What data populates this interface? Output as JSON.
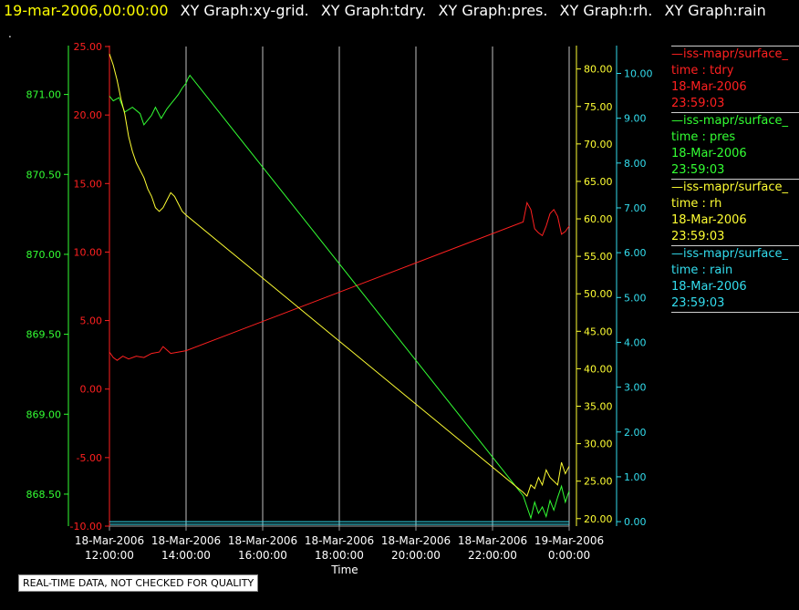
{
  "header": {
    "timestamp": "19-mar-2006,00:00:00",
    "graphs": [
      "XY Graph:xy-grid.",
      "XY Graph:tdry.",
      "XY Graph:pres.",
      "XY Graph:rh.",
      "XY Graph:rain"
    ],
    "dot": "."
  },
  "notice": "REAL-TIME DATA, NOT CHECKED FOR QUALITY",
  "legend": [
    {
      "source": "iss-mapr/surface_",
      "field": "time : tdry",
      "date": "18-Mar-2006",
      "time": "23:59:03",
      "color": "#ff2020"
    },
    {
      "source": "iss-mapr/surface_",
      "field": "time : pres",
      "date": "18-Mar-2006",
      "time": "23:59:03",
      "color": "#33ff33"
    },
    {
      "source": "iss-mapr/surface_",
      "field": "time : rh",
      "date": "18-Mar-2006",
      "time": "23:59:03",
      "color": "#ffff33"
    },
    {
      "source": "iss-mapr/surface_",
      "field": "time : rain",
      "date": "18-Mar-2006",
      "time": "23:59:03",
      "color": "#33ddee"
    }
  ],
  "chart_data": {
    "type": "line",
    "xlabel": "Time",
    "x_ticks": [
      {
        "hour": 12,
        "date": "18-Mar-2006",
        "time": "12:00:00"
      },
      {
        "hour": 14,
        "date": "18-Mar-2006",
        "time": "14:00:00"
      },
      {
        "hour": 16,
        "date": "18-Mar-2006",
        "time": "16:00:00"
      },
      {
        "hour": 18,
        "date": "18-Mar-2006",
        "time": "18:00:00"
      },
      {
        "hour": 20,
        "date": "18-Mar-2006",
        "time": "20:00:00"
      },
      {
        "hour": 22,
        "date": "18-Mar-2006",
        "time": "22:00:00"
      },
      {
        "hour": 24,
        "date": "19-Mar-2006",
        "time": "0:00:00"
      }
    ],
    "xlim": [
      12,
      24
    ],
    "grid": "vertical lines at x ticks",
    "axes": [
      {
        "id": "pres",
        "color": "#33ff33",
        "ylim": [
          868.3,
          871.3
        ],
        "ticks": [
          "868.50",
          "869.00",
          "869.50",
          "870.00",
          "870.50",
          "871.00"
        ]
      },
      {
        "id": "tdry",
        "color": "#ff2020",
        "ylim": [
          -10,
          25
        ],
        "ticks": [
          "-10.00",
          "-5.00",
          "0.00",
          "5.00",
          "10.00",
          "15.00",
          "20.00",
          "25.00"
        ]
      },
      {
        "id": "rh",
        "color": "#ffff33",
        "ylim": [
          19,
          83
        ],
        "ticks": [
          "20.00",
          "25.00",
          "30.00",
          "35.00",
          "40.00",
          "45.00",
          "50.00",
          "55.00",
          "60.00",
          "65.00",
          "70.00",
          "75.00",
          "80.00"
        ]
      },
      {
        "id": "rain",
        "color": "#33ddee",
        "ylim": [
          -0.1,
          10.6
        ],
        "ticks": [
          "0.00",
          "1.00",
          "2.00",
          "3.00",
          "4.00",
          "5.00",
          "6.00",
          "7.00",
          "8.00",
          "9.00",
          "10.00"
        ]
      }
    ],
    "series": [
      {
        "name": "time : tdry",
        "axis": "tdry",
        "color": "#ff2020",
        "x": [
          12.0,
          12.1,
          12.2,
          12.35,
          12.5,
          12.7,
          12.9,
          13.1,
          13.3,
          13.4,
          13.6,
          13.8,
          14.0,
          22.8,
          22.9,
          23.0,
          23.1,
          23.2,
          23.3,
          23.4,
          23.5,
          23.6,
          23.7,
          23.8,
          23.9,
          24.0
        ],
        "values": [
          2.7,
          2.3,
          2.1,
          2.4,
          2.2,
          2.4,
          2.3,
          2.6,
          2.7,
          3.1,
          2.6,
          2.7,
          2.8,
          12.2,
          13.6,
          13.1,
          11.7,
          11.4,
          11.2,
          11.9,
          12.8,
          13.1,
          12.6,
          11.3,
          11.5,
          11.9
        ]
      },
      {
        "name": "time : pres",
        "axis": "pres",
        "color": "#33ff33",
        "x": [
          12.0,
          12.1,
          12.25,
          12.4,
          12.6,
          12.8,
          12.9,
          13.0,
          13.1,
          13.2,
          13.35,
          13.5,
          13.6,
          13.7,
          13.8,
          13.9,
          14.0,
          14.05,
          14.1,
          22.8,
          22.9,
          23.0,
          23.1,
          23.2,
          23.3,
          23.4,
          23.5,
          23.6,
          23.7,
          23.8,
          23.9,
          24.0
        ],
        "values": [
          870.99,
          870.96,
          870.98,
          870.89,
          870.92,
          870.88,
          870.81,
          870.84,
          870.87,
          870.92,
          870.85,
          870.91,
          870.94,
          870.97,
          871.0,
          871.04,
          871.07,
          871.1,
          871.12,
          868.49,
          868.42,
          868.35,
          868.45,
          868.38,
          868.42,
          868.36,
          868.46,
          868.4,
          868.48,
          868.55,
          868.45,
          868.52
        ]
      },
      {
        "name": "time : rh",
        "axis": "rh",
        "color": "#ffff33",
        "x": [
          12.0,
          12.1,
          12.2,
          12.3,
          12.4,
          12.5,
          12.6,
          12.7,
          12.8,
          12.9,
          13.0,
          13.1,
          13.2,
          13.3,
          13.4,
          13.5,
          13.6,
          13.7,
          13.8,
          13.9,
          14.0,
          22.8,
          22.9,
          23.0,
          23.1,
          23.2,
          23.3,
          23.4,
          23.5,
          23.6,
          23.7,
          23.8,
          23.9,
          24.0
        ],
        "values": [
          82.0,
          80.5,
          78.5,
          76.0,
          74.0,
          71.0,
          69.0,
          67.5,
          66.5,
          65.5,
          64.0,
          63.0,
          61.5,
          61.0,
          61.5,
          62.5,
          63.5,
          63.0,
          62.0,
          61.0,
          60.5,
          23.5,
          23.0,
          24.5,
          24.0,
          25.5,
          24.5,
          26.5,
          25.5,
          25.0,
          24.5,
          27.5,
          26.0,
          27.0
        ]
      },
      {
        "name": "time : rain",
        "axis": "rain",
        "color": "#33ddee",
        "x": [
          12.0,
          24.0
        ],
        "values": [
          0.0,
          0.0
        ]
      }
    ]
  }
}
